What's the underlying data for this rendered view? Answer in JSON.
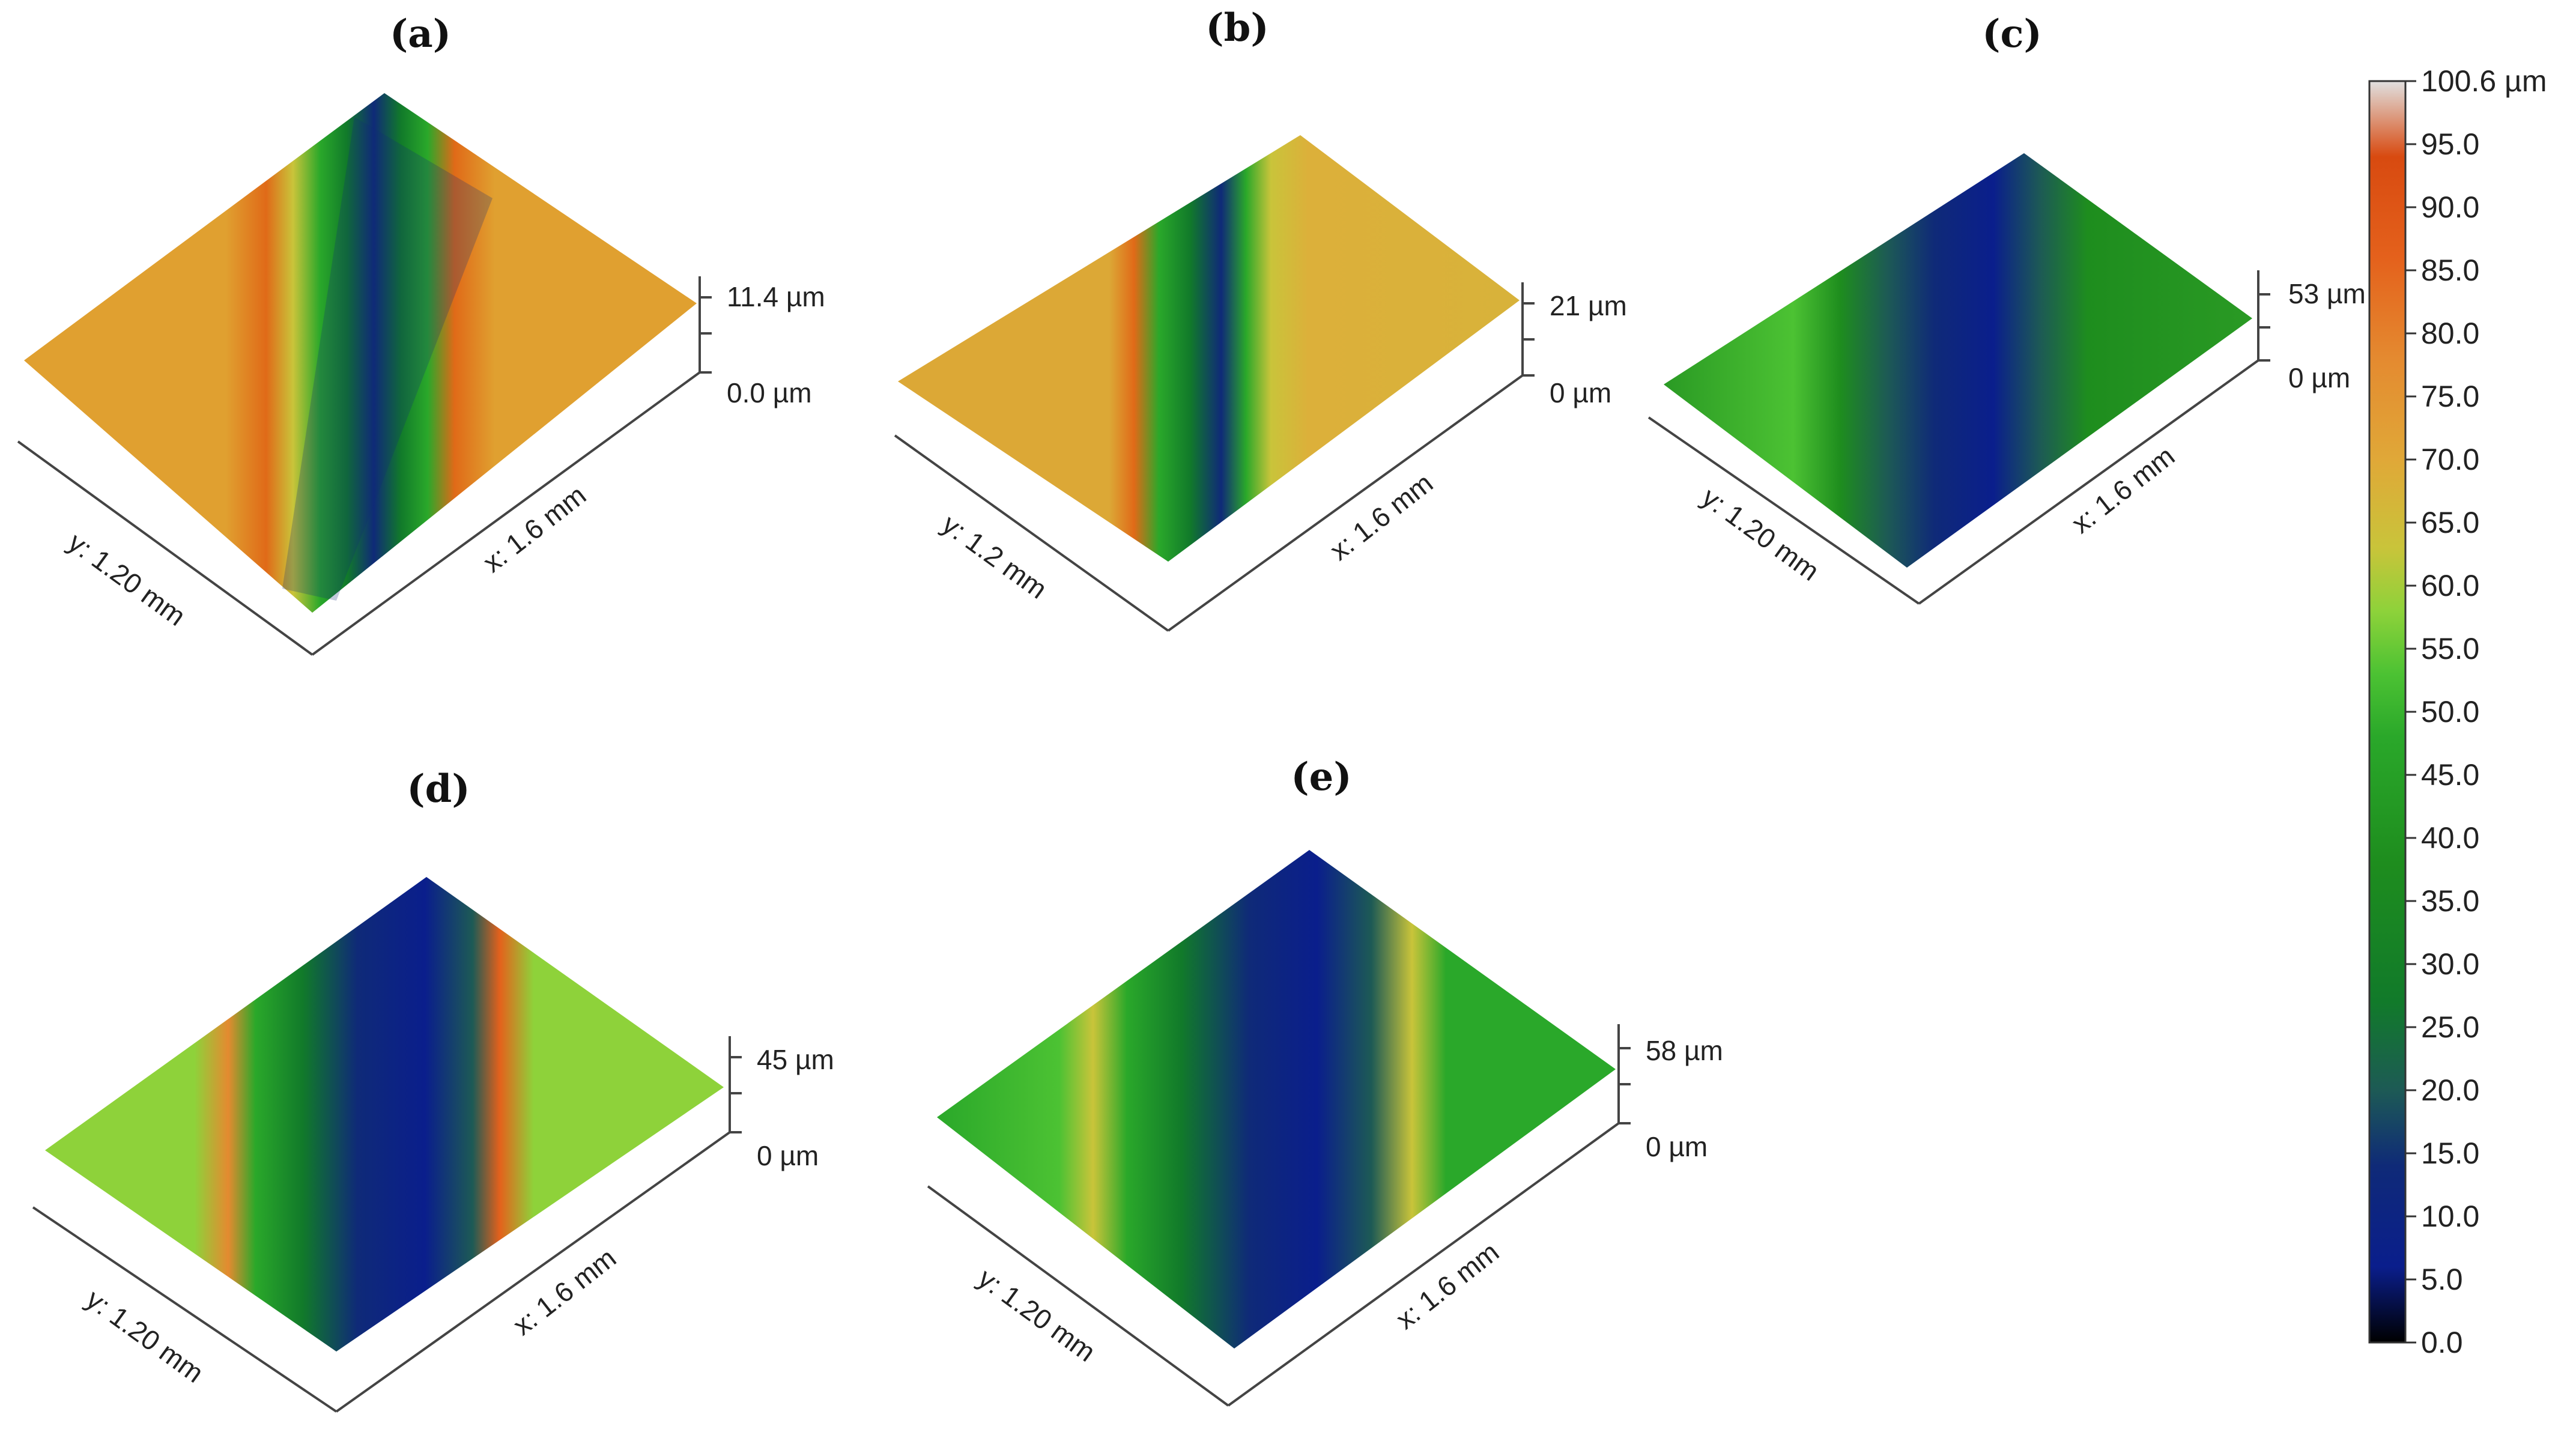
{
  "colors": {
    "scale": [
      "#000000",
      "#0a1e8c",
      "#0f2a78",
      "#1d5a55",
      "#117a2a",
      "#1e8d1e",
      "#2aa82a",
      "#4cc233",
      "#8ed23a",
      "#c9c43a",
      "#e0a838",
      "#e48a30",
      "#e4611c",
      "#d84a10",
      "#e0e0e0"
    ],
    "axis": "#444444"
  },
  "colorbar": {
    "ticks": [
      "100.6 µm",
      "95.0",
      "90.0",
      "85.0",
      "80.0",
      "75.0",
      "70.0",
      "65.0",
      "60.0",
      "55.0",
      "50.0",
      "45.0",
      "40.0",
      "35.0",
      "30.0",
      "25.0",
      "20.0",
      "15.0",
      "10.0",
      "5.0",
      "0.0"
    ]
  },
  "panels": [
    {
      "id": "a",
      "label": "(a)",
      "y_label": "y: 1.20 mm",
      "x_label": "x: 1.6 mm",
      "z_max": "11.4 µm",
      "z_min": "0.0 µm",
      "groove": "v-groove",
      "base_level": 72
    },
    {
      "id": "b",
      "label": "(b)",
      "y_label": "y: 1.2 mm",
      "x_label": "x: 1.6 mm",
      "z_max": "21 µm",
      "z_min": "0 µm",
      "groove": "narrow-u",
      "base_level": 68
    },
    {
      "id": "c",
      "label": "(c)",
      "y_label": "y: 1.20 mm",
      "x_label": "x: 1.6 mm",
      "z_max": "53 µm",
      "z_min": "0 µm",
      "groove": "wide-u",
      "base_level": 40
    },
    {
      "id": "d",
      "label": "(d)",
      "y_label": "y: 1.20 mm",
      "x_label": "x: 1.6 mm",
      "z_max": "45 µm",
      "z_min": "0 µm",
      "groove": "wide-u",
      "base_level": 55
    },
    {
      "id": "e",
      "label": "(e)",
      "y_label": "y: 1.20 mm",
      "x_label": "x: 1.6 mm",
      "z_max": "58 µm",
      "z_min": "0 µm",
      "groove": "wide-u",
      "base_level": 48
    }
  ]
}
